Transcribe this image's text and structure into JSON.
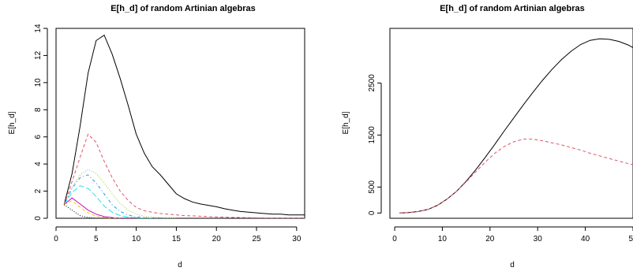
{
  "chart_data": [
    {
      "type": "line",
      "title": "E[h_d] of random Artinian algebras",
      "xlabel": "d",
      "ylabel": "E[h_d]",
      "xlim": [
        0,
        31
      ],
      "ylim": [
        0,
        14
      ],
      "xticks": [
        0,
        5,
        10,
        15,
        20,
        25,
        30
      ],
      "yticks": [
        0,
        2,
        4,
        6,
        8,
        10,
        12,
        14
      ],
      "grid": false,
      "legend": "none",
      "series": [
        {
          "color": "#000000",
          "dash": "solid",
          "x": [
            1,
            2,
            3,
            4,
            5,
            6,
            7,
            8,
            9,
            10,
            11,
            12,
            13,
            14,
            15,
            16,
            17,
            18,
            19,
            20,
            21,
            22,
            23,
            24,
            25,
            26,
            27,
            28,
            29,
            30,
            31
          ],
          "y": [
            1,
            3.3,
            6.8,
            10.7,
            13.1,
            13.5,
            12.1,
            10.3,
            8.3,
            6.2,
            4.8,
            3.8,
            3.2,
            2.5,
            1.8,
            1.45,
            1.2,
            1.05,
            0.95,
            0.85,
            0.7,
            0.6,
            0.5,
            0.45,
            0.4,
            0.35,
            0.3,
            0.3,
            0.25,
            0.25,
            0.25
          ]
        },
        {
          "color": "#DF536B",
          "dash": "dashed",
          "x": [
            1,
            2,
            3,
            4,
            5,
            6,
            7,
            8,
            9,
            10,
            11,
            12,
            13,
            14,
            15,
            16,
            17,
            18,
            19,
            20,
            21,
            22,
            23,
            24,
            25,
            26,
            27,
            28,
            29,
            30,
            31
          ],
          "y": [
            1,
            2.7,
            4.5,
            6.2,
            5.6,
            4.2,
            3.0,
            2.0,
            1.3,
            0.8,
            0.55,
            0.45,
            0.35,
            0.3,
            0.25,
            0.2,
            0.18,
            0.15,
            0.12,
            0.1,
            0.08,
            0.06,
            0.05,
            0.04,
            0.03,
            0.02,
            0.02,
            0.01,
            0.01,
            0.01,
            0.01
          ]
        },
        {
          "color": "#9ACD32",
          "dash": "dotted",
          "x": [
            1,
            2,
            3,
            4,
            5,
            6,
            7,
            8,
            9,
            10,
            11,
            12,
            13,
            14,
            15
          ],
          "y": [
            1,
            2.3,
            3.2,
            3.6,
            3.3,
            2.6,
            1.8,
            1.1,
            0.6,
            0.3,
            0.15,
            0.08,
            0.04,
            0.02,
            0.01
          ]
        },
        {
          "color": "#2297E6",
          "dash": "dotdash",
          "x": [
            1,
            2,
            3,
            4,
            5,
            6,
            7,
            8,
            9,
            10,
            11,
            12,
            13,
            14
          ],
          "y": [
            1,
            2.2,
            3.0,
            3.2,
            2.6,
            1.8,
            1.0,
            0.5,
            0.25,
            0.1,
            0.05,
            0.02,
            0.01,
            0.01
          ]
        },
        {
          "color": "#28E2E5",
          "dash": "longdash",
          "x": [
            1,
            2,
            3,
            4,
            5,
            6,
            7,
            8,
            9,
            10,
            11,
            12
          ],
          "y": [
            1,
            1.9,
            2.4,
            2.2,
            1.6,
            0.9,
            0.45,
            0.2,
            0.08,
            0.03,
            0.01,
            0.01
          ]
        },
        {
          "color": "#CD0BBC",
          "dash": "solid",
          "x": [
            1,
            2,
            3,
            4,
            5,
            6,
            7,
            8,
            9,
            10
          ],
          "y": [
            1,
            1.5,
            1.05,
            0.6,
            0.3,
            0.12,
            0.05,
            0.02,
            0.01,
            0.01
          ]
        },
        {
          "color": "#F5C710",
          "dash": "dashed",
          "x": [
            1,
            2,
            3,
            4,
            5,
            6,
            7,
            8
          ],
          "y": [
            1,
            1.3,
            0.8,
            0.4,
            0.15,
            0.05,
            0.02,
            0.01
          ]
        },
        {
          "color": "#000000",
          "dash": "dotted",
          "x": [
            1,
            2,
            3,
            4,
            5,
            6
          ],
          "y": [
            1,
            0.6,
            0.2,
            0.05,
            0.01,
            0.0
          ]
        }
      ]
    },
    {
      "type": "line",
      "title": "E[h_d] of random Artinian algebras",
      "xlabel": "d",
      "ylabel": "E[h_d]",
      "xlim": [
        -1,
        50
      ],
      "ylim": [
        -100,
        3550
      ],
      "xticks": [
        0,
        10,
        20,
        30,
        40,
        50
      ],
      "yticks": [
        0,
        500,
        1500,
        2500
      ],
      "grid": false,
      "legend": "none",
      "series": [
        {
          "color": "#000000",
          "dash": "solid",
          "x": [
            1,
            3,
            5,
            7,
            9,
            11,
            13,
            15,
            17,
            19,
            21,
            23,
            25,
            27,
            29,
            31,
            33,
            35,
            37,
            39,
            41,
            43,
            45,
            47,
            49,
            50
          ],
          "y": [
            1,
            10,
            30,
            70,
            150,
            270,
            420,
            610,
            830,
            1070,
            1320,
            1580,
            1830,
            2080,
            2320,
            2550,
            2760,
            2950,
            3110,
            3240,
            3320,
            3350,
            3340,
            3300,
            3230,
            3180
          ]
        },
        {
          "color": "#DF536B",
          "dash": "dashed",
          "x": [
            1,
            3,
            5,
            7,
            9,
            11,
            13,
            15,
            17,
            19,
            21,
            23,
            25,
            27,
            29,
            31,
            33,
            35,
            37,
            39,
            41,
            43,
            45,
            47,
            49,
            50
          ],
          "y": [
            1,
            10,
            30,
            70,
            150,
            270,
            420,
            600,
            790,
            980,
            1150,
            1280,
            1370,
            1420,
            1420,
            1390,
            1350,
            1310,
            1260,
            1210,
            1150,
            1100,
            1050,
            1000,
            950,
            930
          ]
        }
      ]
    }
  ]
}
